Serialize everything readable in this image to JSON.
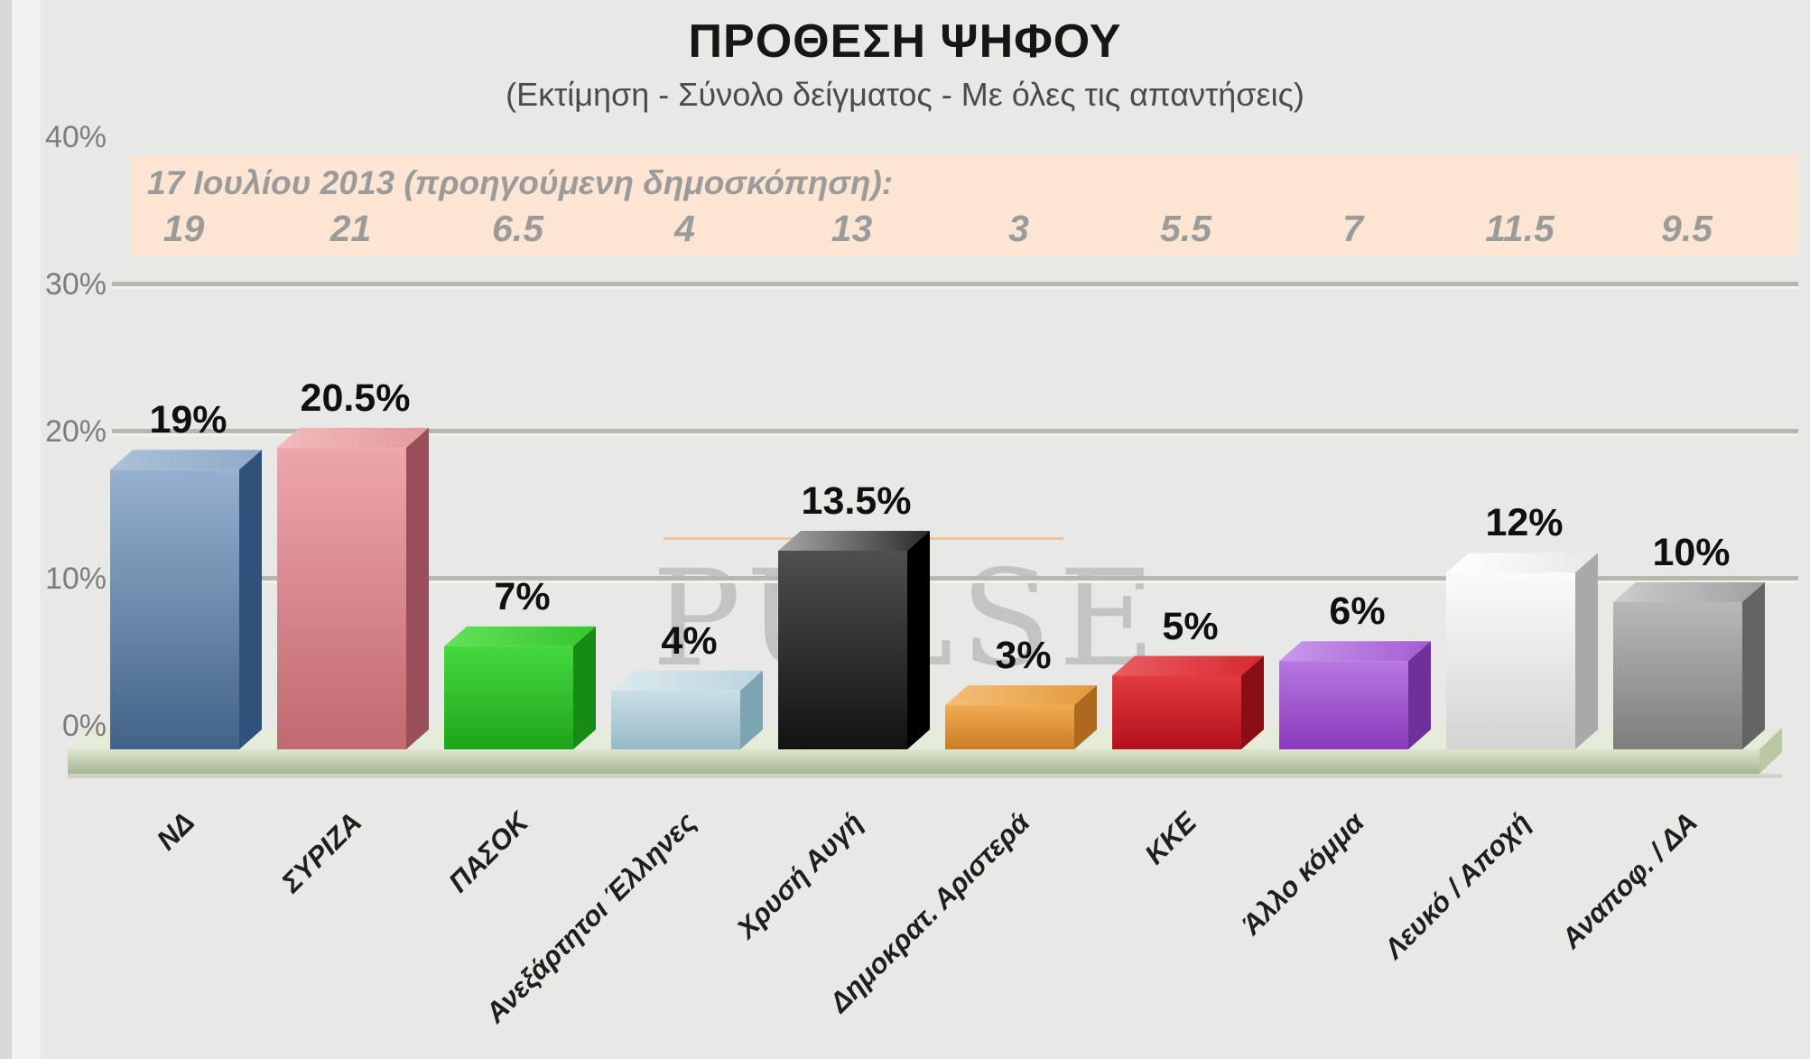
{
  "title": "ΠΡΟΘΕΣΗ ΨΗΦΟΥ",
  "subtitle": "(Εκτίμηση - Σύνολο δείγματος - Με όλες τις απαντήσεις)",
  "previous_poll_banner": {
    "heading": "17 Ιουλίου 2013  (προηγούμενη δημοσκόπηση):",
    "values": [
      "19",
      "21",
      "6.5",
      "4",
      "13",
      "3",
      "5.5",
      "7",
      "11.5",
      "9.5"
    ],
    "background": "#fce5d2",
    "text_color": "#9b9b9b"
  },
  "watermark": {
    "text": "PULSE",
    "rule_color": "#ecc49b"
  },
  "chart_data": {
    "type": "bar",
    "title": "ΠΡΟΘΕΣΗ ΨΗΦΟΥ",
    "categories": [
      "ΝΔ",
      "ΣΥΡΙΖΑ",
      "ΠΑΣΟΚ",
      "Ανεξάρτητοι Έλληνες",
      "Χρυσή Αυγή",
      "Δημοκρατ. Αριστερά",
      "ΚΚΕ",
      "Άλλο κόμμα",
      "Λευκό / Αποχή",
      "Αναποφ. / ΔΑ"
    ],
    "values": [
      19,
      20.5,
      7,
      4,
      13.5,
      3,
      5,
      6,
      12,
      10
    ],
    "value_labels": [
      "19%",
      "20.5%",
      "7%",
      "4%",
      "13.5%",
      "3%",
      "5%",
      "6%",
      "12%",
      "10%"
    ],
    "previous_values": [
      19,
      21,
      6.5,
      4,
      13,
      3,
      5.5,
      7,
      11.5,
      9.5
    ],
    "xlabel": "",
    "ylabel": "",
    "y_ticks": [
      "0%",
      "10%",
      "20%",
      "30%",
      "40%"
    ],
    "ylim": [
      0,
      40
    ],
    "grid": true,
    "legend": "none",
    "bar_styles": [
      {
        "front": [
          "#96b0cf",
          "#416387"
        ],
        "side": "#30517a",
        "top": [
          "#aac1d8",
          "#8fabc8"
        ]
      },
      {
        "front": [
          "#eda6ab",
          "#c16870"
        ],
        "side": "#9a4e59",
        "top": [
          "#f3babc",
          "#e39a9f"
        ]
      },
      {
        "front": [
          "#46d840",
          "#1da51a"
        ],
        "side": "#168c14",
        "top": [
          "#63e159",
          "#35c62e"
        ]
      },
      {
        "front": [
          "#cadfe6",
          "#95b9c6"
        ],
        "side": "#7da4b3",
        "top": [
          "#dbeaef",
          "#bcd5dd"
        ]
      },
      {
        "front": [
          "#4f4f4f",
          "#121212"
        ],
        "side": "#000000",
        "top": [
          "#a8a8a8",
          "#2a2a2a"
        ]
      },
      {
        "front": [
          "#f0ab50",
          "#cb7d26"
        ],
        "side": "#ad6a1d",
        "top": [
          "#f4c077",
          "#e39a3c"
        ]
      },
      {
        "front": [
          "#e43b41",
          "#b2111b"
        ],
        "side": "#8a0d15",
        "top": [
          "#ec5d62",
          "#d42930"
        ]
      },
      {
        "front": [
          "#b678e1",
          "#8c39bb"
        ],
        "side": "#70309a",
        "top": [
          "#c998ec",
          "#a55bd3"
        ]
      },
      {
        "front": [
          "#fbfbfb",
          "#d3d3d3"
        ],
        "side": "#a9a9a9",
        "top": [
          "#ffffff",
          "#e8e8e8"
        ]
      },
      {
        "front": [
          "#b8b8b8",
          "#7d7d7d"
        ],
        "side": "#646464",
        "top": [
          "#cccccc",
          "#a0a0a0"
        ]
      }
    ],
    "style": {
      "background": "#e8e8e6",
      "grid_color": "#b7b7b2",
      "grid_highlight": "#f2f2ea",
      "floor_top": "#e5ebd9",
      "floor_front_from": "#dde5cf",
      "floor_front_to": "#a6b691",
      "floor_cap": "#bac7a5"
    }
  }
}
